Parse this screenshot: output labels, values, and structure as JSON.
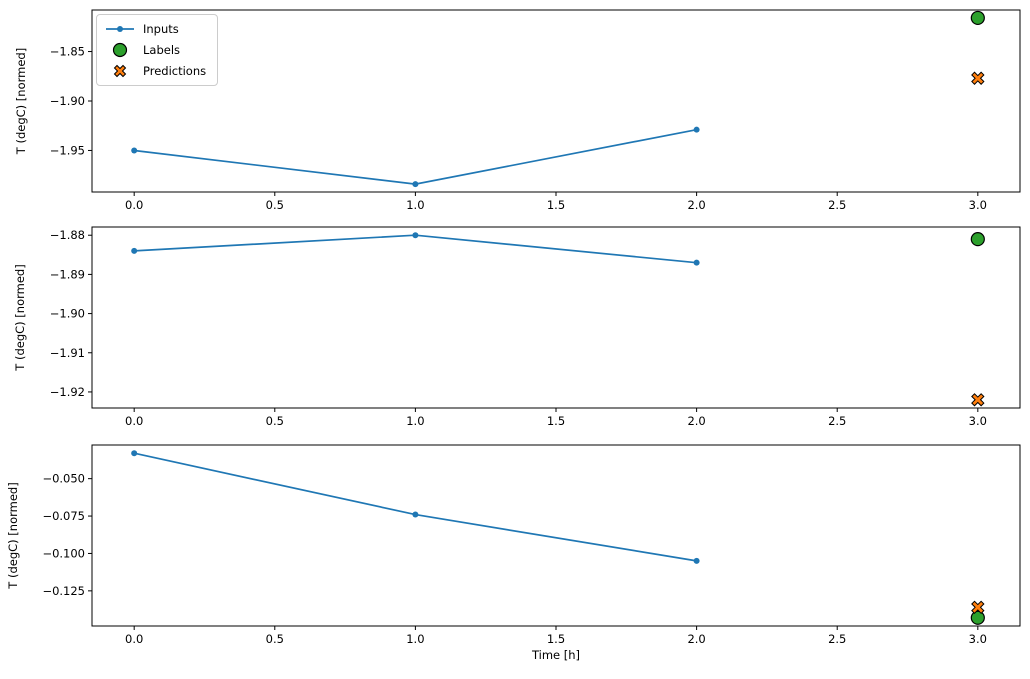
{
  "figure": {
    "background": "#ffffff",
    "xlabel": "Time [h]",
    "ylabel": "T (degC) [normed]",
    "colors": {
      "inputs": "#1f77b4",
      "labels": "#2ca02c",
      "predictions": "#ff7f0e",
      "marker_edge": "#000000",
      "spine": "#000000"
    }
  },
  "legend": {
    "position": "upper left",
    "items": [
      {
        "label": "Inputs",
        "marker": "line-dot",
        "color": "#1f77b4"
      },
      {
        "label": "Labels",
        "marker": "circle",
        "color": "#2ca02c"
      },
      {
        "label": "Predictions",
        "marker": "X",
        "color": "#ff7f0e"
      }
    ]
  },
  "chart_data": [
    {
      "type": "line",
      "title": "",
      "xlabel": "",
      "ylabel": "T (degC) [normed]",
      "xlim": [
        -0.15,
        3.15
      ],
      "ylim": [
        -1.992,
        -1.808
      ],
      "xticks": [
        0.0,
        0.5,
        1.0,
        1.5,
        2.0,
        2.5,
        3.0
      ],
      "xtick_labels": [
        "0.0",
        "0.5",
        "1.0",
        "1.5",
        "2.0",
        "2.5",
        "3.0"
      ],
      "yticks": [
        -1.85,
        -1.9,
        -1.95
      ],
      "ytick_labels": [
        "−1.85",
        "−1.90",
        "−1.95"
      ],
      "grid": false,
      "legend": true,
      "series": [
        {
          "name": "Inputs",
          "plot": "line",
          "marker": "dot",
          "color": "#1f77b4",
          "x": [
            0,
            1,
            2
          ],
          "y": [
            -1.95,
            -1.984,
            -1.929
          ]
        },
        {
          "name": "Labels",
          "plot": "scatter",
          "marker": "circle",
          "color": "#2ca02c",
          "edge_color": "#000000",
          "x": [
            3
          ],
          "y": [
            -1.816
          ]
        },
        {
          "name": "Predictions",
          "plot": "scatter",
          "marker": "X",
          "color": "#ff7f0e",
          "edge_color": "#000000",
          "x": [
            3
          ],
          "y": [
            -1.877
          ]
        }
      ]
    },
    {
      "type": "line",
      "title": "",
      "xlabel": "",
      "ylabel": "T (degC) [normed]",
      "xlim": [
        -0.15,
        3.15
      ],
      "ylim": [
        -1.9241,
        -1.8779
      ],
      "xticks": [
        0.0,
        0.5,
        1.0,
        1.5,
        2.0,
        2.5,
        3.0
      ],
      "xtick_labels": [
        "0.0",
        "0.5",
        "1.0",
        "1.5",
        "2.0",
        "2.5",
        "3.0"
      ],
      "yticks": [
        -1.88,
        -1.89,
        -1.9,
        -1.91,
        -1.92
      ],
      "ytick_labels": [
        "−1.88",
        "−1.89",
        "−1.90",
        "−1.91",
        "−1.92"
      ],
      "grid": false,
      "legend": false,
      "series": [
        {
          "name": "Inputs",
          "plot": "line",
          "marker": "dot",
          "color": "#1f77b4",
          "x": [
            0,
            1,
            2
          ],
          "y": [
            -1.884,
            -1.88,
            -1.887
          ]
        },
        {
          "name": "Labels",
          "plot": "scatter",
          "marker": "circle",
          "color": "#2ca02c",
          "edge_color": "#000000",
          "x": [
            3
          ],
          "y": [
            -1.881
          ]
        },
        {
          "name": "Predictions",
          "plot": "scatter",
          "marker": "X",
          "color": "#ff7f0e",
          "edge_color": "#000000",
          "x": [
            3
          ],
          "y": [
            -1.922
          ]
        }
      ]
    },
    {
      "type": "line",
      "title": "",
      "xlabel": "Time [h]",
      "ylabel": "T (degC) [normed]",
      "xlim": [
        -0.15,
        3.15
      ],
      "ylim": [
        -0.1485,
        -0.0275
      ],
      "xticks": [
        0.0,
        0.5,
        1.0,
        1.5,
        2.0,
        2.5,
        3.0
      ],
      "xtick_labels": [
        "0.0",
        "0.5",
        "1.0",
        "1.5",
        "2.0",
        "2.5",
        "3.0"
      ],
      "yticks": [
        -0.05,
        -0.075,
        -0.1,
        -0.125
      ],
      "ytick_labels": [
        "−0.050",
        "−0.075",
        "−0.100",
        "−0.125"
      ],
      "grid": false,
      "legend": false,
      "series": [
        {
          "name": "Inputs",
          "plot": "line",
          "marker": "dot",
          "color": "#1f77b4",
          "x": [
            0,
            1,
            2
          ],
          "y": [
            -0.033,
            -0.074,
            -0.105
          ]
        },
        {
          "name": "Labels",
          "plot": "scatter",
          "marker": "circle",
          "color": "#2ca02c",
          "edge_color": "#000000",
          "x": [
            3
          ],
          "y": [
            -0.143
          ]
        },
        {
          "name": "Predictions",
          "plot": "scatter",
          "marker": "X",
          "color": "#ff7f0e",
          "edge_color": "#000000",
          "x": [
            3
          ],
          "y": [
            -0.136
          ]
        }
      ]
    }
  ]
}
